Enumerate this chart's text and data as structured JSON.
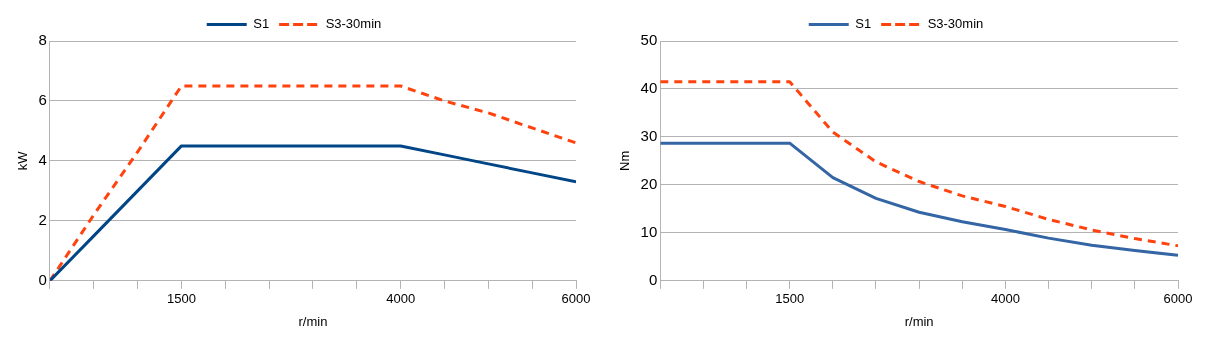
{
  "chart_data": [
    {
      "type": "line",
      "xlabel": "r/min",
      "ylabel": "kW",
      "x": [
        0,
        500,
        1000,
        1500,
        2000,
        2500,
        3000,
        3500,
        4000,
        4500,
        5000,
        5500,
        6000
      ],
      "xlim": [
        0,
        6000
      ],
      "xticks": [
        {
          "value": 0,
          "label": null
        },
        {
          "value": 500,
          "label": null
        },
        {
          "value": 1000,
          "label": null
        },
        1500,
        {
          "value": 2000,
          "label": null
        },
        {
          "value": 2500,
          "label": null
        },
        {
          "value": 3000,
          "label": null
        },
        {
          "value": 3500,
          "label": null
        },
        4000,
        {
          "value": 4500,
          "label": null
        },
        {
          "value": 5000,
          "label": null
        },
        {
          "value": 5500,
          "label": null
        },
        6000
      ],
      "ylim": [
        0,
        8
      ],
      "yticks": [
        0,
        2,
        4,
        6,
        8
      ],
      "grid": "y",
      "legend": "top",
      "marker": "none",
      "series": [
        {
          "name": "S1",
          "color": "#004586",
          "line_style": "solid",
          "values": [
            0,
            1.5,
            3.0,
            4.5,
            4.5,
            4.5,
            4.5,
            4.5,
            4.5,
            4.2,
            3.9,
            3.6,
            3.3
          ]
        },
        {
          "name": "S3-30min",
          "color": "#ff420e",
          "line_style": "dashed",
          "values": [
            0,
            2.2,
            4.3,
            6.5,
            6.5,
            6.5,
            6.5,
            6.5,
            6.5,
            6.0,
            5.6,
            5.1,
            4.6
          ]
        }
      ]
    },
    {
      "type": "line",
      "xlabel": "r/min",
      "ylabel": "Nm",
      "x": [
        0,
        500,
        1000,
        1500,
        2000,
        2500,
        3000,
        3500,
        4000,
        4500,
        5000,
        5500,
        6000
      ],
      "xlim": [
        0,
        6000
      ],
      "xticks": [
        {
          "value": 0,
          "label": null
        },
        {
          "value": 500,
          "label": null
        },
        {
          "value": 1000,
          "label": null
        },
        1500,
        {
          "value": 2000,
          "label": null
        },
        {
          "value": 2500,
          "label": null
        },
        {
          "value": 3000,
          "label": null
        },
        {
          "value": 3500,
          "label": null
        },
        4000,
        {
          "value": 4500,
          "label": null
        },
        {
          "value": 5000,
          "label": null
        },
        {
          "value": 5500,
          "label": null
        },
        6000
      ],
      "ylim": [
        0,
        50
      ],
      "yticks": [
        0,
        10,
        20,
        30,
        40,
        50
      ],
      "grid": "y",
      "legend": "top",
      "marker": "none",
      "series": [
        {
          "name": "S1",
          "color": "#3465a4",
          "line_style": "solid",
          "values": [
            28.7,
            28.7,
            28.7,
            28.7,
            21.5,
            17.2,
            14.3,
            12.3,
            10.7,
            8.9,
            7.4,
            6.3,
            5.3
          ]
        },
        {
          "name": "S3-30min",
          "color": "#ff420e",
          "line_style": "dashed",
          "values": [
            41.5,
            41.5,
            41.5,
            41.5,
            31.0,
            24.8,
            20.7,
            17.7,
            15.5,
            12.8,
            10.6,
            8.8,
            7.3
          ]
        }
      ]
    }
  ]
}
